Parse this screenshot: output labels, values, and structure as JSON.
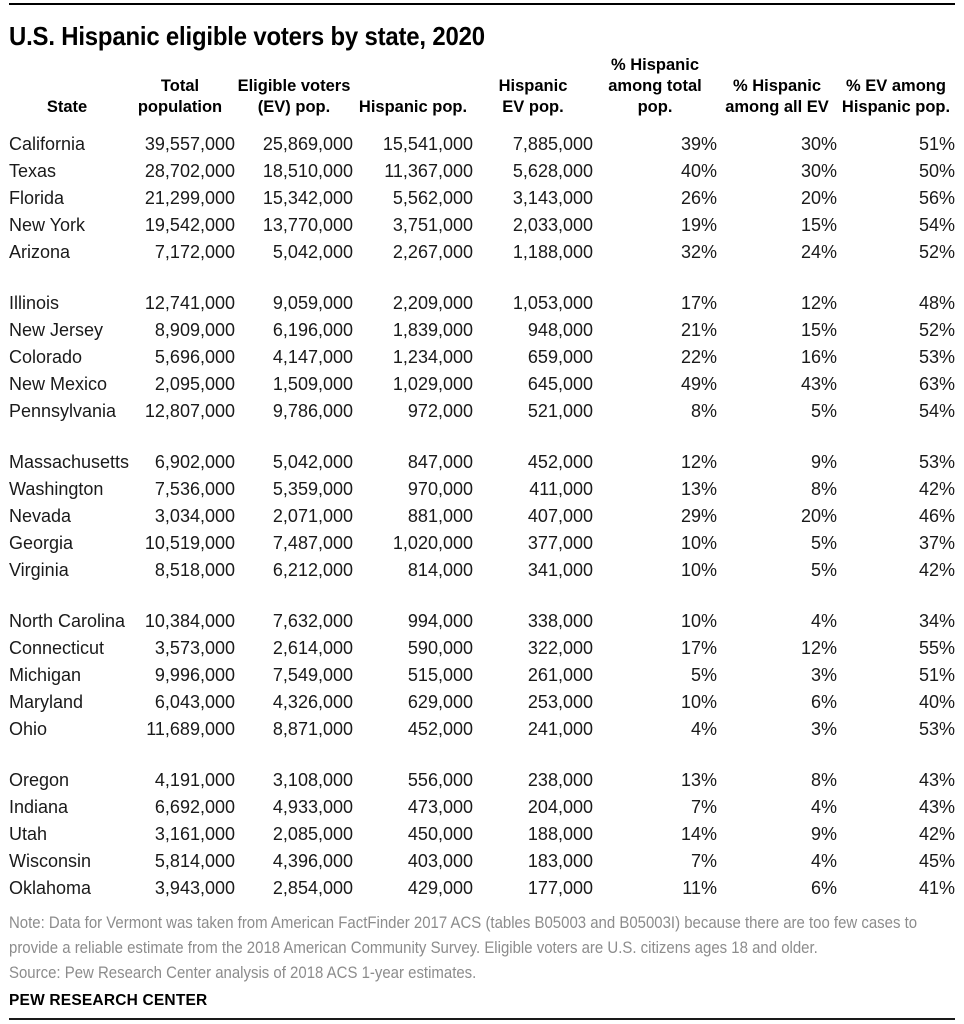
{
  "title": "U.S. Hispanic eligible voters by state, 2020",
  "colors": {
    "title_text": "#000000",
    "body_text": "#1a1a1a",
    "note_gray": "#8c8c8c",
    "rule": "#000000"
  },
  "table": {
    "header_lines": [
      [
        "State"
      ],
      [
        "Total",
        "population"
      ],
      [
        "Eligible voters",
        "(EV) pop."
      ],
      [
        "Hispanic pop."
      ],
      [
        "Hispanic",
        "EV pop."
      ],
      [
        "% Hispanic",
        "among total",
        "pop."
      ],
      [
        "% Hispanic",
        "among all EV"
      ],
      [
        "% EV among",
        "Hispanic pop."
      ]
    ]
  },
  "chart_data": {
    "type": "table",
    "title": "U.S. Hispanic eligible voters by state, 2020",
    "columns": [
      "State",
      "Total population",
      "Eligible voters (EV) pop.",
      "Hispanic pop.",
      "Hispanic EV pop.",
      "% Hispanic among total pop.",
      "% Hispanic among all EV",
      "% EV among Hispanic pop."
    ],
    "row_groups": [
      5,
      5,
      5,
      5,
      5
    ],
    "rows": [
      [
        "California",
        "39,557,000",
        "25,869,000",
        "15,541,000",
        "7,885,000",
        "39%",
        "30%",
        "51%"
      ],
      [
        "Texas",
        "28,702,000",
        "18,510,000",
        "11,367,000",
        "5,628,000",
        "40%",
        "30%",
        "50%"
      ],
      [
        "Florida",
        "21,299,000",
        "15,342,000",
        "5,562,000",
        "3,143,000",
        "26%",
        "20%",
        "56%"
      ],
      [
        "New York",
        "19,542,000",
        "13,770,000",
        "3,751,000",
        "2,033,000",
        "19%",
        "15%",
        "54%"
      ],
      [
        "Arizona",
        "7,172,000",
        "5,042,000",
        "2,267,000",
        "1,188,000",
        "32%",
        "24%",
        "52%"
      ],
      [
        "Illinois",
        "12,741,000",
        "9,059,000",
        "2,209,000",
        "1,053,000",
        "17%",
        "12%",
        "48%"
      ],
      [
        "New Jersey",
        "8,909,000",
        "6,196,000",
        "1,839,000",
        "948,000",
        "21%",
        "15%",
        "52%"
      ],
      [
        "Colorado",
        "5,696,000",
        "4,147,000",
        "1,234,000",
        "659,000",
        "22%",
        "16%",
        "53%"
      ],
      [
        "New Mexico",
        "2,095,000",
        "1,509,000",
        "1,029,000",
        "645,000",
        "49%",
        "43%",
        "63%"
      ],
      [
        "Pennsylvania",
        "12,807,000",
        "9,786,000",
        "972,000",
        "521,000",
        "8%",
        "5%",
        "54%"
      ],
      [
        "Massachusetts",
        "6,902,000",
        "5,042,000",
        "847,000",
        "452,000",
        "12%",
        "9%",
        "53%"
      ],
      [
        "Washington",
        "7,536,000",
        "5,359,000",
        "970,000",
        "411,000",
        "13%",
        "8%",
        "42%"
      ],
      [
        "Nevada",
        "3,034,000",
        "2,071,000",
        "881,000",
        "407,000",
        "29%",
        "20%",
        "46%"
      ],
      [
        "Georgia",
        "10,519,000",
        "7,487,000",
        "1,020,000",
        "377,000",
        "10%",
        "5%",
        "37%"
      ],
      [
        "Virginia",
        "8,518,000",
        "6,212,000",
        "814,000",
        "341,000",
        "10%",
        "5%",
        "42%"
      ],
      [
        "North Carolina",
        "10,384,000",
        "7,632,000",
        "994,000",
        "338,000",
        "10%",
        "4%",
        "34%"
      ],
      [
        "Connecticut",
        "3,573,000",
        "2,614,000",
        "590,000",
        "322,000",
        "17%",
        "12%",
        "55%"
      ],
      [
        "Michigan",
        "9,996,000",
        "7,549,000",
        "515,000",
        "261,000",
        "5%",
        "3%",
        "51%"
      ],
      [
        "Maryland",
        "6,043,000",
        "4,326,000",
        "629,000",
        "253,000",
        "10%",
        "6%",
        "40%"
      ],
      [
        "Ohio",
        "11,689,000",
        "8,871,000",
        "452,000",
        "241,000",
        "4%",
        "3%",
        "53%"
      ],
      [
        "Oregon",
        "4,191,000",
        "3,108,000",
        "556,000",
        "238,000",
        "13%",
        "8%",
        "43%"
      ],
      [
        "Indiana",
        "6,692,000",
        "4,933,000",
        "473,000",
        "204,000",
        "7%",
        "4%",
        "43%"
      ],
      [
        "Utah",
        "3,161,000",
        "2,085,000",
        "450,000",
        "188,000",
        "14%",
        "9%",
        "42%"
      ],
      [
        "Wisconsin",
        "5,814,000",
        "4,396,000",
        "403,000",
        "183,000",
        "7%",
        "4%",
        "45%"
      ],
      [
        "Oklahoma",
        "3,943,000",
        "2,854,000",
        "429,000",
        "177,000",
        "11%",
        "6%",
        "41%"
      ]
    ]
  },
  "footer": {
    "note_lines": [
      "Note: Data for Vermont was taken from American FactFinder 2017 ACS (tables B05003 and B05003I) because there are too few cases to",
      "provide a reliable estimate from the 2018 American Community Survey. Eligible voters are U.S. citizens ages 18 and older."
    ],
    "source": "Source: Pew Research Center analysis of 2018 ACS 1-year estimates.",
    "brand": "PEW RESEARCH CENTER"
  }
}
